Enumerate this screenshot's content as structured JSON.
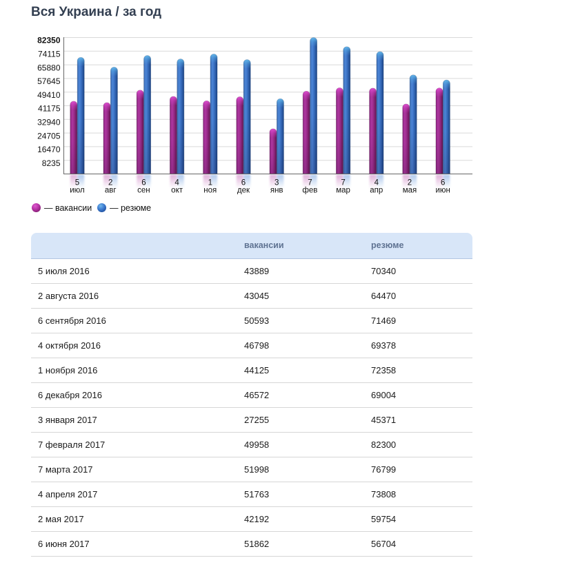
{
  "title": "Вся Украина / за год",
  "colors": {
    "vacancies": "#9c2d8c",
    "resumes": "#3a70c2",
    "grid": "#d9d9d9",
    "axis": "#666666",
    "table_header_bg": "#d8e6f8",
    "table_header_text": "#5f7392"
  },
  "chart_data": {
    "type": "bar",
    "title": "Вся Украина / за год",
    "ylim": [
      0,
      82350
    ],
    "ytick_step": 8235,
    "yticks": [
      82350,
      74115,
      65880,
      57645,
      49410,
      41175,
      32940,
      24705,
      16470,
      8235
    ],
    "grid": true,
    "legend_position": "bottom",
    "categories": [
      "5 июл",
      "2 авг",
      "6 сен",
      "4 окт",
      "1 ноя",
      "6 дек",
      "3 янв",
      "7 фев",
      "7 мар",
      "4 апр",
      "2 мая",
      "6 июн"
    ],
    "category_days": [
      "5",
      "2",
      "6",
      "4",
      "1",
      "6",
      "3",
      "7",
      "7",
      "4",
      "2",
      "6"
    ],
    "category_months": [
      "июл",
      "авг",
      "сен",
      "окт",
      "ноя",
      "дек",
      "янв",
      "фев",
      "мар",
      "апр",
      "мая",
      "июн"
    ],
    "series": [
      {
        "name": "вакансии",
        "color": "#9c2d8c",
        "values": [
          43889,
          43045,
          50593,
          46798,
          44125,
          46572,
          27255,
          49958,
          51998,
          51763,
          42192,
          51862
        ]
      },
      {
        "name": "резюме",
        "color": "#3a70c2",
        "values": [
          70340,
          64470,
          71469,
          69378,
          72358,
          69004,
          45371,
          82300,
          76799,
          73808,
          59754,
          56704
        ]
      }
    ]
  },
  "legend": {
    "vacancies_label": "— вакансии",
    "resumes_label": "— резюме"
  },
  "table": {
    "date_header": "",
    "vacancies_header": "вакансии",
    "resumes_header": "резюме",
    "rows": [
      {
        "date": "5 июля 2016",
        "vacancies": "43889",
        "resumes": "70340"
      },
      {
        "date": "2 августа 2016",
        "vacancies": "43045",
        "resumes": "64470"
      },
      {
        "date": "6 сентября 2016",
        "vacancies": "50593",
        "resumes": "71469"
      },
      {
        "date": "4 октября 2016",
        "vacancies": "46798",
        "resumes": "69378"
      },
      {
        "date": "1 ноября 2016",
        "vacancies": "44125",
        "resumes": "72358"
      },
      {
        "date": "6 декабря 2016",
        "vacancies": "46572",
        "resumes": "69004"
      },
      {
        "date": "3 января 2017",
        "vacancies": "27255",
        "resumes": "45371"
      },
      {
        "date": "7 февраля 2017",
        "vacancies": "49958",
        "resumes": "82300"
      },
      {
        "date": "7 марта 2017",
        "vacancies": "51998",
        "resumes": "76799"
      },
      {
        "date": "4 апреля 2017",
        "vacancies": "51763",
        "resumes": "73808"
      },
      {
        "date": "2 мая 2017",
        "vacancies": "42192",
        "resumes": "59754"
      },
      {
        "date": "6 июня 2017",
        "vacancies": "51862",
        "resumes": "56704"
      }
    ]
  }
}
